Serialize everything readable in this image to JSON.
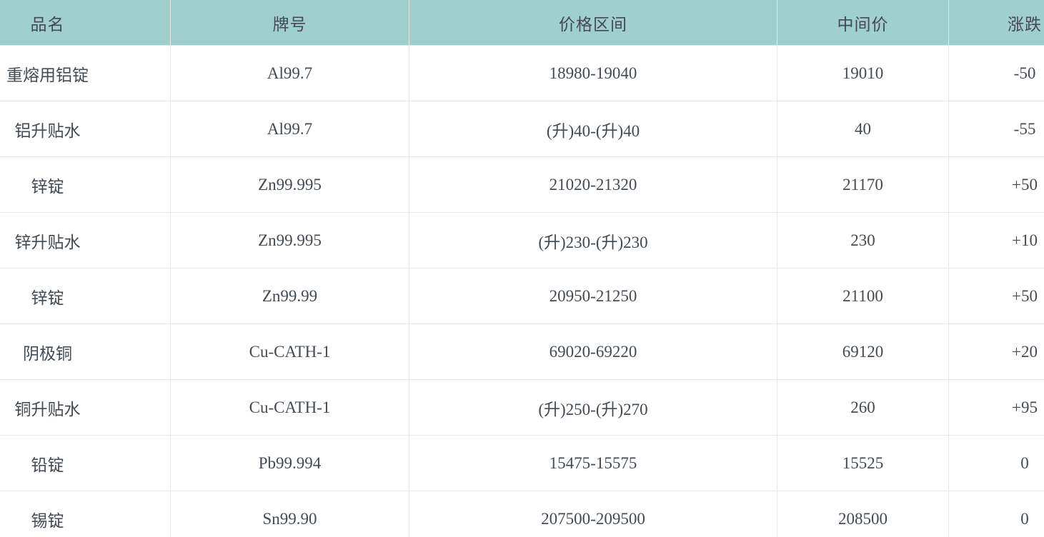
{
  "table": {
    "columns": [
      {
        "key": "product",
        "label": "品名"
      },
      {
        "key": "grade",
        "label": "牌号"
      },
      {
        "key": "price_range",
        "label": "价格区间"
      },
      {
        "key": "mid_price",
        "label": "中间价"
      },
      {
        "key": "change",
        "label": "涨跌"
      }
    ],
    "rows": [
      {
        "product": "重熔用铝锭",
        "grade": "Al99.7",
        "price_range": "18980-19040",
        "mid_price": "19010",
        "change": "-50"
      },
      {
        "product": "铝升贴水",
        "grade": "Al99.7",
        "price_range": "(升)40-(升)40",
        "mid_price": "40",
        "change": "-55"
      },
      {
        "product": "锌锭",
        "grade": "Zn99.995",
        "price_range": "21020-21320",
        "mid_price": "21170",
        "change": "+50"
      },
      {
        "product": "锌升贴水",
        "grade": "Zn99.995",
        "price_range": "(升)230-(升)230",
        "mid_price": "230",
        "change": "+10"
      },
      {
        "product": "锌锭",
        "grade": "Zn99.99",
        "price_range": "20950-21250",
        "mid_price": "21100",
        "change": "+50"
      },
      {
        "product": "阴极铜",
        "grade": "Cu-CATH-1",
        "price_range": "69020-69220",
        "mid_price": "69120",
        "change": "+20"
      },
      {
        "product": "铜升贴水",
        "grade": "Cu-CATH-1",
        "price_range": "(升)250-(升)270",
        "mid_price": "260",
        "change": "+95"
      },
      {
        "product": "铅锭",
        "grade": "Pb99.994",
        "price_range": "15475-15575",
        "mid_price": "15525",
        "change": "0"
      },
      {
        "product": "锡锭",
        "grade": "Sn99.90",
        "price_range": "207500-209500",
        "mid_price": "208500",
        "change": "0"
      }
    ]
  },
  "colors": {
    "header_background": "#9fd0cc",
    "text": "#424a52",
    "grid_border": "#e6e6e6",
    "row_background": "#ffffff"
  }
}
